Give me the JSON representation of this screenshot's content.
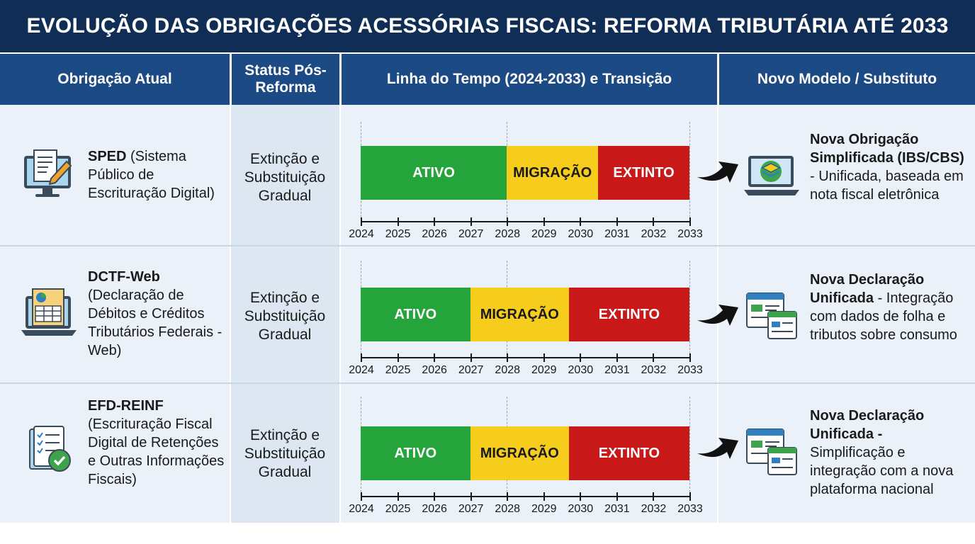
{
  "title": "EVOLUÇÃO DAS OBRIGAÇÕES ACESSÓRIAS FISCAIS: REFORMA TRIBUTÁRIA ATÉ 2033",
  "headers": {
    "col1": "Obrigação Atual",
    "col2": "Status Pós-Reforma",
    "col3": "Linha do Tempo (2024-2033) e Transição",
    "col4": "Novo Modelo / Substituto"
  },
  "years": [
    "2024",
    "2025",
    "2026",
    "2027",
    "2028",
    "2029",
    "2030",
    "2031",
    "2032",
    "2033"
  ],
  "rows": [
    {
      "name": "SPED",
      "description": " (Sistema Público de Escrituração Digital)",
      "status": "Extinção e Substituição Gradual",
      "phases": {
        "active_label": "ATIVO",
        "migration_label": "MIGRAÇÃO",
        "extinct_label": "EXTINTO"
      },
      "active_end_year": 2028,
      "migration_end_year": 2030.5,
      "icon": "computer-edit-document-icon",
      "new_title": "Nova Obrigação Simplificada (IBS/CBS)",
      "new_desc": " - Unificada, baseada em nota fiscal eletrônica",
      "new_icon": "laptop-layers-icon"
    },
    {
      "name": "DCTF-Web",
      "description": " (Declaração de Débitos e Créditos Tributários Federais - Web)",
      "status": "Extinção e Substituição Gradual",
      "phases": {
        "active_label": "ATIVO",
        "migration_label": "MIGRAÇÃO",
        "extinct_label": "EXTINTO"
      },
      "active_end_year": 2027,
      "migration_end_year": 2029.7,
      "icon": "laptop-spreadsheet-icon",
      "new_title": "Nova Declaração Unificada",
      "new_desc": " - Integração com dados de folha e tributos sobre consumo",
      "new_icon": "browser-windows-icon"
    },
    {
      "name": "EFD-REINF",
      "description": " (Escrituração Fiscal Digital de Retenções e Outras Informações Fiscais)",
      "status": "Extinção e Substituição Gradual",
      "phases": {
        "active_label": "ATIVO",
        "migration_label": "MIGRAÇÃO",
        "extinct_label": "EXTINTO"
      },
      "active_end_year": 2027,
      "migration_end_year": 2029.7,
      "icon": "checklist-document-icon",
      "new_title": "Nova Declaração Unificada -",
      "new_desc": " Simplificação e integração com a nova plataforma nacional",
      "new_icon": "browser-windows-icon"
    }
  ],
  "colors": {
    "active": "#26a43c",
    "migration": "#f6cd1c",
    "extinct": "#c91818",
    "title_bg": "#0f2d55",
    "header_bg": "#1c4a85"
  }
}
